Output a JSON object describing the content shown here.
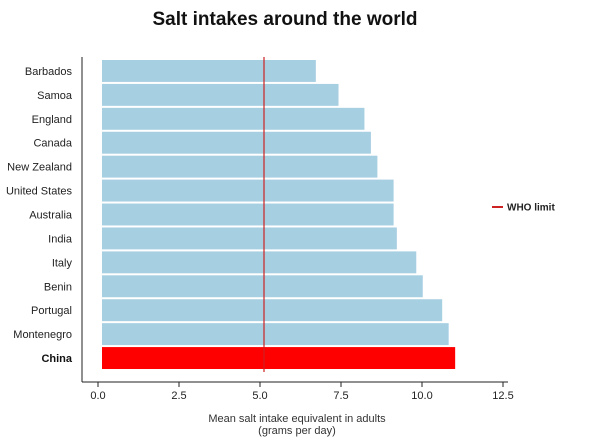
{
  "chart_data": {
    "type": "bar",
    "orientation": "horizontal",
    "title": "Salt intakes around the world",
    "xlabel": [
      "Mean salt intake equivalent in adults",
      "(grams per day)"
    ],
    "ylabel": "",
    "xlim": [
      0,
      12.5
    ],
    "xticks": [
      "0.0",
      "2.5",
      "5.0",
      "7.5",
      "10.0",
      "12.5"
    ],
    "grid": false,
    "categories": [
      "Barbados",
      "Samoa",
      "England",
      "Canada",
      "New Zealand",
      "United States",
      "Australia",
      "India",
      "Italy",
      "Benin",
      "Portugal",
      "Montenegro",
      "China"
    ],
    "values": [
      6.6,
      7.3,
      8.1,
      8.3,
      8.5,
      9.0,
      9.0,
      9.1,
      9.7,
      9.9,
      10.5,
      10.7,
      10.9
    ],
    "highlight": "China",
    "bar_color": "#a7cfe2",
    "highlight_color": "#ff0000",
    "reference_line": {
      "label": "WHO limit",
      "value": 5.0,
      "color": "#cc2222"
    },
    "legend_position": "right"
  }
}
